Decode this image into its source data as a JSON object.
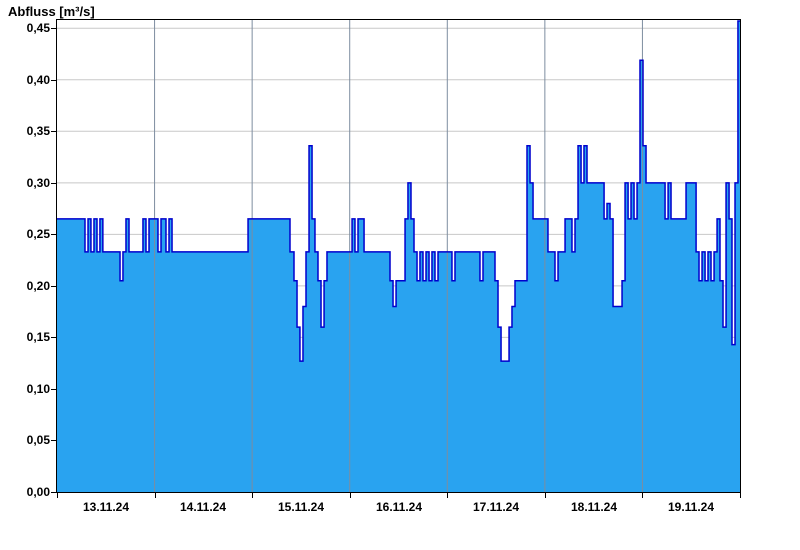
{
  "chart_data": {
    "type": "area",
    "title": "Abfluss [m³/s]",
    "ylabel": "Abfluss [m³/s]",
    "xlabel": "",
    "grid": true,
    "legend": false,
    "x_range_days": 7,
    "x_tick_labels": [
      "13.11.24",
      "14.11.24",
      "15.11.24",
      "16.11.24",
      "17.11.24",
      "18.11.24",
      "19.11.24"
    ],
    "y_ticks": [
      0.0,
      0.05,
      0.1,
      0.15,
      0.2,
      0.25,
      0.3,
      0.35,
      0.4,
      0.45
    ],
    "y_tick_labels": [
      "0,00",
      "0,05",
      "0,10",
      "0,15",
      "0,20",
      "0,25",
      "0,30",
      "0,35",
      "0,40",
      "0,45"
    ],
    "y_axis_max": 0.458,
    "colors": {
      "fill": "#29a3f0",
      "line": "#0000cd",
      "hgrid": "#c8c8c8",
      "vgrid": "#7d8da0",
      "axis": "#000000"
    },
    "series": [
      {
        "name": "Abfluss",
        "unit": "m³/s",
        "points": [
          [
            0.0,
            0.265
          ],
          [
            0.287,
            0.233
          ],
          [
            0.318,
            0.265
          ],
          [
            0.348,
            0.233
          ],
          [
            0.379,
            0.265
          ],
          [
            0.41,
            0.233
          ],
          [
            0.44,
            0.265
          ],
          [
            0.47,
            0.233
          ],
          [
            0.646,
            0.205
          ],
          [
            0.676,
            0.233
          ],
          [
            0.707,
            0.265
          ],
          [
            0.738,
            0.233
          ],
          [
            0.881,
            0.265
          ],
          [
            0.912,
            0.233
          ],
          [
            0.943,
            0.265
          ],
          [
            1.035,
            0.233
          ],
          [
            1.066,
            0.265
          ],
          [
            1.117,
            0.233
          ],
          [
            1.148,
            0.265
          ],
          [
            1.179,
            0.233
          ],
          [
            1.958,
            0.265
          ],
          [
            2.388,
            0.233
          ],
          [
            2.429,
            0.205
          ],
          [
            2.46,
            0.16
          ],
          [
            2.49,
            0.127
          ],
          [
            2.521,
            0.18
          ],
          [
            2.552,
            0.233
          ],
          [
            2.583,
            0.336
          ],
          [
            2.614,
            0.265
          ],
          [
            2.644,
            0.233
          ],
          [
            2.675,
            0.205
          ],
          [
            2.706,
            0.16
          ],
          [
            2.737,
            0.205
          ],
          [
            2.767,
            0.233
          ],
          [
            3.024,
            0.265
          ],
          [
            3.054,
            0.233
          ],
          [
            3.085,
            0.265
          ],
          [
            3.147,
            0.233
          ],
          [
            3.413,
            0.205
          ],
          [
            3.444,
            0.18
          ],
          [
            3.475,
            0.205
          ],
          [
            3.567,
            0.265
          ],
          [
            3.597,
            0.3
          ],
          [
            3.628,
            0.265
          ],
          [
            3.659,
            0.233
          ],
          [
            3.69,
            0.205
          ],
          [
            3.72,
            0.233
          ],
          [
            3.751,
            0.205
          ],
          [
            3.782,
            0.233
          ],
          [
            3.813,
            0.205
          ],
          [
            3.843,
            0.233
          ],
          [
            3.874,
            0.205
          ],
          [
            3.905,
            0.233
          ],
          [
            4.048,
            0.205
          ],
          [
            4.079,
            0.233
          ],
          [
            4.335,
            0.205
          ],
          [
            4.366,
            0.233
          ],
          [
            4.489,
            0.205
          ],
          [
            4.52,
            0.16
          ],
          [
            4.551,
            0.127
          ],
          [
            4.633,
            0.16
          ],
          [
            4.663,
            0.18
          ],
          [
            4.694,
            0.205
          ],
          [
            4.817,
            0.336
          ],
          [
            4.848,
            0.3
          ],
          [
            4.879,
            0.265
          ],
          [
            5.032,
            0.233
          ],
          [
            5.104,
            0.205
          ],
          [
            5.135,
            0.233
          ],
          [
            5.207,
            0.265
          ],
          [
            5.278,
            0.233
          ],
          [
            5.309,
            0.265
          ],
          [
            5.34,
            0.336
          ],
          [
            5.371,
            0.3
          ],
          [
            5.401,
            0.336
          ],
          [
            5.432,
            0.3
          ],
          [
            5.607,
            0.265
          ],
          [
            5.637,
            0.28
          ],
          [
            5.668,
            0.265
          ],
          [
            5.699,
            0.18
          ],
          [
            5.791,
            0.205
          ],
          [
            5.822,
            0.3
          ],
          [
            5.853,
            0.265
          ],
          [
            5.883,
            0.3
          ],
          [
            5.914,
            0.265
          ],
          [
            5.945,
            0.3
          ],
          [
            5.975,
            0.419
          ],
          [
            6.006,
            0.336
          ],
          [
            6.037,
            0.3
          ],
          [
            6.232,
            0.265
          ],
          [
            6.263,
            0.3
          ],
          [
            6.293,
            0.265
          ],
          [
            6.447,
            0.3
          ],
          [
            6.55,
            0.233
          ],
          [
            6.58,
            0.205
          ],
          [
            6.611,
            0.233
          ],
          [
            6.642,
            0.205
          ],
          [
            6.672,
            0.233
          ],
          [
            6.703,
            0.205
          ],
          [
            6.734,
            0.233
          ],
          [
            6.765,
            0.265
          ],
          [
            6.795,
            0.205
          ],
          [
            6.826,
            0.16
          ],
          [
            6.857,
            0.3
          ],
          [
            6.888,
            0.265
          ],
          [
            6.918,
            0.143
          ],
          [
            6.949,
            0.3
          ],
          [
            6.979,
            0.457
          ]
        ]
      }
    ]
  }
}
